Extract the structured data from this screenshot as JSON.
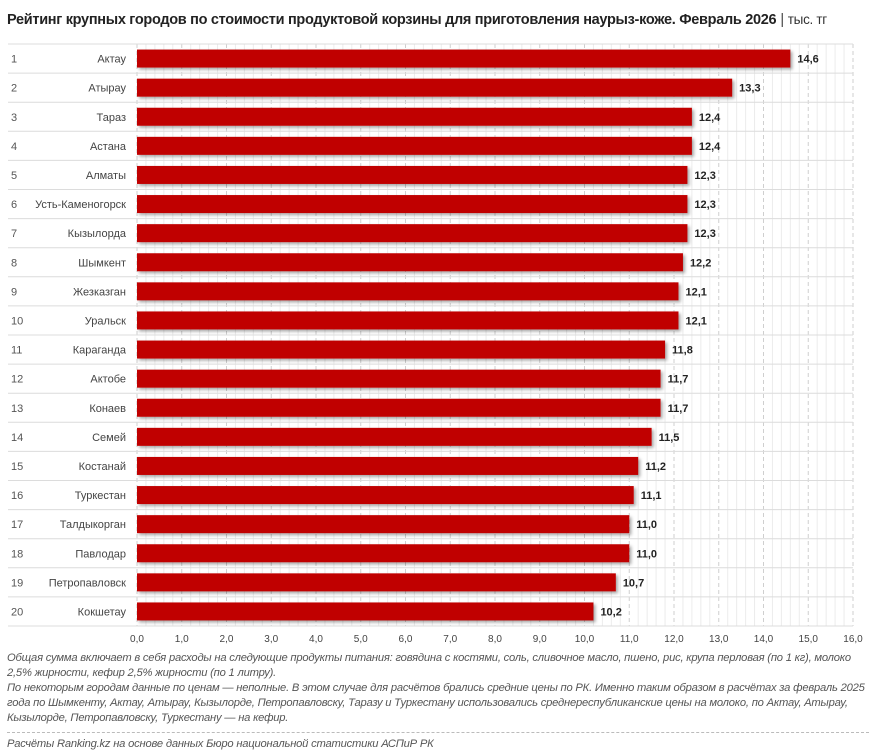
{
  "chart_data": {
    "type": "bar",
    "orientation": "horizontal",
    "title": "Рейтинг крупных городов по стоимости продуктовой корзины для приготовления наурыз-коже. Февраль 2026",
    "unit": "тыс. тг",
    "ranks": [
      "1",
      "2",
      "3",
      "4",
      "5",
      "6",
      "7",
      "8",
      "9",
      "10",
      "11",
      "12",
      "13",
      "14",
      "15",
      "16",
      "17",
      "18",
      "19",
      "20"
    ],
    "categories": [
      "Актау",
      "Атырау",
      "Тараз",
      "Астана",
      "Алматы",
      "Усть-Каменогорск",
      "Кызылорда",
      "Шымкент",
      "Жезказган",
      "Уральск",
      "Караганда",
      "Актобе",
      "Конаев",
      "Семей",
      "Костанай",
      "Туркестан",
      "Талдыкорган",
      "Павлодар",
      "Петропавловск",
      "Кокшетау"
    ],
    "values": [
      14.6,
      13.3,
      12.4,
      12.4,
      12.3,
      12.3,
      12.3,
      12.2,
      12.1,
      12.1,
      11.8,
      11.7,
      11.7,
      11.5,
      11.2,
      11.1,
      11.0,
      11.0,
      10.7,
      10.2
    ],
    "data_labels": [
      "14,6",
      "13,3",
      "12,4",
      "12,4",
      "12,3",
      "12,3",
      "12,3",
      "12,2",
      "12,1",
      "12,1",
      "11,8",
      "11,7",
      "11,7",
      "11,5",
      "11,2",
      "11,1",
      "11,0",
      "11,0",
      "10,7",
      "10,2"
    ],
    "xlim": [
      0,
      16
    ],
    "x_ticks": [
      "0,0",
      "1,0",
      "2,0",
      "3,0",
      "4,0",
      "5,0",
      "6,0",
      "7,0",
      "8,0",
      "9,0",
      "10,0",
      "11,0",
      "12,0",
      "13,0",
      "14,0",
      "15,0",
      "16,0"
    ],
    "grid": true,
    "bar_color": "#c00000"
  },
  "notes": {
    "note1": "Общая сумма включает в себя расходы на следующие продукты питания: говядина с костями, соль, сливочное масло, пшено, рис, крупа перловая (по 1 кг), молоко 2,5% жирности, кефир 2,5% жирности (по 1 литру).",
    "note2": "По некоторым городам данные по ценам — неполные. В этом случае для расчётов брались средние цены по РК. Именно таким образом в расчётах за февраль 2025 года по Шымкенту, Актау, Атырау, Кызылорде, Петропавловску, Таразу и Туркестану использовались среднереспубликанские цены на молоко, по Актау, Атырау, Кызылорде, Петропавловску, Туркестану — на кефир.",
    "source": "Расчёты Ranking.kz на основе данных Бюро национальной статистики АСПиР РК"
  },
  "separator": "|"
}
